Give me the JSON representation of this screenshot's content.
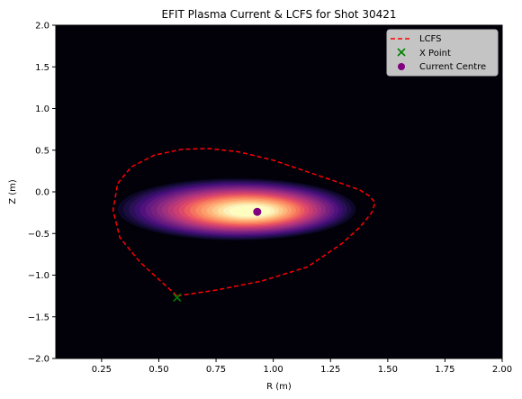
{
  "chart_data": {
    "type": "contour",
    "title": "EFIT Plasma Current & LCFS for Shot 30421",
    "xlabel": "R (m)",
    "ylabel": "Z (m)",
    "xlim": [
      0.05,
      2.0
    ],
    "ylim": [
      -2.0,
      2.0
    ],
    "xticks": [
      "0.25",
      "0.50",
      "0.75",
      "1.00",
      "1.25",
      "1.50",
      "1.75",
      "2.00"
    ],
    "xtick_values": [
      0.25,
      0.5,
      0.75,
      1.0,
      1.25,
      1.5,
      1.75,
      2.0
    ],
    "yticks": [
      "2.0",
      "1.5",
      "1.0",
      "0.5",
      "0.0",
      "−0.5",
      "−1.0",
      "−1.5",
      "−2.0"
    ],
    "ytick_values": [
      2.0,
      1.5,
      1.0,
      0.5,
      0.0,
      -0.5,
      -1.0,
      -1.5,
      -2.0
    ],
    "colormap": "magma",
    "current_peak": {
      "R": 0.9,
      "Z": -0.23
    },
    "series": [
      {
        "name": "LCFS",
        "style": "dashed",
        "color": "#ff0000",
        "points": [
          [
            0.58,
            -1.25
          ],
          [
            0.75,
            -1.18
          ],
          [
            0.95,
            -1.07
          ],
          [
            1.15,
            -0.9
          ],
          [
            1.3,
            -0.62
          ],
          [
            1.38,
            -0.42
          ],
          [
            1.43,
            -0.25
          ],
          [
            1.445,
            -0.13
          ],
          [
            1.42,
            -0.05
          ],
          [
            1.38,
            0.02
          ],
          [
            1.3,
            0.1
          ],
          [
            1.15,
            0.24
          ],
          [
            1.0,
            0.38
          ],
          [
            0.85,
            0.48
          ],
          [
            0.72,
            0.52
          ],
          [
            0.6,
            0.51
          ],
          [
            0.48,
            0.44
          ],
          [
            0.38,
            0.3
          ],
          [
            0.32,
            0.1
          ],
          [
            0.3,
            -0.22
          ],
          [
            0.33,
            -0.55
          ],
          [
            0.42,
            -0.85
          ],
          [
            0.52,
            -1.1
          ],
          [
            0.58,
            -1.25
          ]
        ]
      },
      {
        "name": "X Point",
        "marker": "x",
        "color": "#008000",
        "points": [
          [
            0.58,
            -1.27
          ]
        ]
      },
      {
        "name": "Current Centre",
        "marker": "circle",
        "color": "#800080",
        "points": [
          [
            0.93,
            -0.24
          ]
        ]
      }
    ],
    "legend": {
      "placement": "top-right",
      "entries": [
        "LCFS",
        "X Point",
        "Current Centre"
      ]
    }
  }
}
